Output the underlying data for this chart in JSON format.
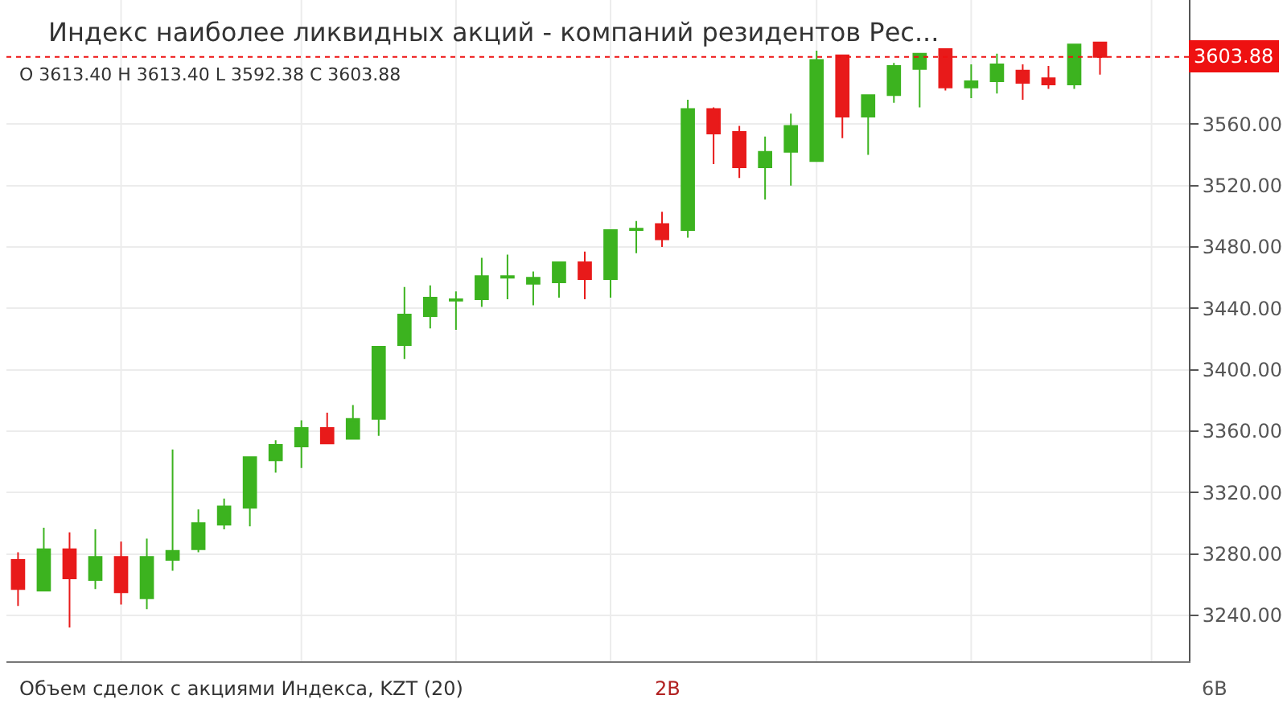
{
  "chart_data": {
    "type": "candlestick",
    "title": "Индекс наиболее ликвидных акций - компаний резидентов Рес...",
    "subtitle": "O 3613.40 H 3613.40 L 3592.38 C 3603.88",
    "categories": [
      null,
      null,
      null,
      null,
      null,
      null,
      null,
      null,
      null,
      null,
      null,
      null,
      null,
      null,
      null,
      null,
      null,
      null,
      null,
      null,
      null,
      null,
      null,
      null,
      null,
      null,
      null,
      null,
      null,
      null,
      null,
      null,
      null,
      null,
      null,
      null,
      null,
      null,
      null,
      null,
      null,
      null,
      null
    ],
    "ohlc": [
      [
        3276,
        3281,
        3246,
        3257
      ],
      [
        3256,
        3297,
        3256,
        3283
      ],
      [
        3283,
        3294,
        3232,
        3264
      ],
      [
        3263,
        3296,
        3257,
        3278
      ],
      [
        3278,
        3288,
        3247,
        3255
      ],
      [
        3251,
        3290,
        3244,
        3278
      ],
      [
        3276,
        3348,
        3269,
        3282
      ],
      [
        3283,
        3309,
        3281,
        3300
      ],
      [
        3299,
        3316,
        3296,
        3311
      ],
      [
        3310,
        3343,
        3298,
        3343
      ],
      [
        3341,
        3354,
        3333,
        3351
      ],
      [
        3350,
        3367,
        3336,
        3362
      ],
      [
        3362,
        3372,
        3352,
        3352
      ],
      [
        3355,
        3377,
        3355,
        3368
      ],
      [
        3368,
        3415,
        3357,
        3415
      ],
      [
        3416,
        3454,
        3407,
        3436
      ],
      [
        3435,
        3455,
        3427,
        3447
      ],
      [
        3445,
        3451,
        3426,
        3446
      ],
      [
        3446,
        3473,
        3441,
        3461
      ],
      [
        3460,
        3475,
        3446,
        3461
      ],
      [
        3456,
        3464,
        3442,
        3460
      ],
      [
        3457,
        3470,
        3447,
        3470
      ],
      [
        3470,
        3477,
        3446,
        3459
      ],
      [
        3459,
        3491,
        3447,
        3491
      ],
      [
        3491,
        3497,
        3476,
        3492
      ],
      [
        3495,
        3503,
        3480,
        3485
      ],
      [
        3491,
        3576,
        3486,
        3570
      ],
      [
        3570,
        3571,
        3534,
        3554
      ],
      [
        3555,
        3559,
        3525,
        3532
      ],
      [
        3532,
        3552,
        3511,
        3542
      ],
      [
        3542,
        3567,
        3520,
        3559
      ],
      [
        3536,
        3608,
        3536,
        3602
      ],
      [
        3605,
        3605,
        3551,
        3565
      ],
      [
        3565,
        3579,
        3540,
        3579
      ],
      [
        3579,
        3600,
        3574,
        3598
      ],
      [
        3596,
        3606,
        3571,
        3606
      ],
      [
        3609,
        3609,
        3582,
        3584
      ],
      [
        3584,
        3599,
        3577,
        3588
      ],
      [
        3588,
        3606,
        3580,
        3599
      ],
      [
        3595,
        3599,
        3576,
        3587
      ],
      [
        3590,
        3598,
        3583,
        3586
      ],
      [
        3586,
        3612,
        3583,
        3612
      ],
      [
        3613.4,
        3613.4,
        3592.38,
        3603.88
      ]
    ],
    "colors": [
      "#e81a1a",
      "#3cb31f",
      "#e81a1a",
      "#3cb31f",
      "#e81a1a",
      "#3cb31f",
      "#3cb31f",
      "#3cb31f",
      "#3cb31f",
      "#3cb31f",
      "#3cb31f",
      "#3cb31f",
      "#e81a1a",
      "#3cb31f",
      "#3cb31f",
      "#3cb31f",
      "#3cb31f",
      "#3cb31f",
      "#3cb31f",
      "#3cb31f",
      "#3cb31f",
      "#3cb31f",
      "#e81a1a",
      "#3cb31f",
      "#3cb31f",
      "#e81a1a",
      "#3cb31f",
      "#e81a1a",
      "#e81a1a",
      "#3cb31f",
      "#3cb31f",
      "#3cb31f",
      "#e81a1a",
      "#3cb31f",
      "#3cb31f",
      "#3cb31f",
      "#e81a1a",
      "#3cb31f",
      "#3cb31f",
      "#e81a1a",
      "#e81a1a",
      "#3cb31f",
      "#e81a1a"
    ],
    "ylim": [
      3210,
      3641
    ],
    "yticks": [
      {
        "value": 3240,
        "label": "3240.00"
      },
      {
        "value": 3280,
        "label": "3280.00"
      },
      {
        "value": 3320,
        "label": "3320.00"
      },
      {
        "value": 3360,
        "label": "3360.00"
      },
      {
        "value": 3400,
        "label": "3400.00"
      },
      {
        "value": 3440,
        "label": "3440.00"
      },
      {
        "value": 3480,
        "label": "3480.00"
      },
      {
        "value": 3520,
        "label": "3520.00"
      },
      {
        "value": 3560,
        "label": "3560.00"
      }
    ],
    "grid": true,
    "tick_labels": "y",
    "ref_lines": [
      {
        "axis": "y",
        "value": 3603.88,
        "label": "3603.88",
        "color": "#ee1111",
        "line_style": "dotted"
      }
    ],
    "annotations": [
      "Объем сделок с акциями Индекса, KZT (20)",
      "2B",
      "6B"
    ]
  }
}
